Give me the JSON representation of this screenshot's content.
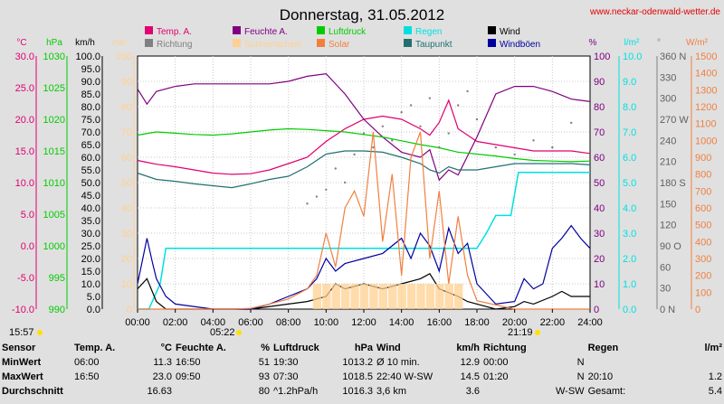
{
  "header": {
    "title": "Donnerstag, 31.05.2012",
    "site_link": "www.neckar-odenwald-wetter.de"
  },
  "colors": {
    "temp": "#e0006f",
    "humidity": "#800080",
    "pressure": "#00cc00",
    "rain": "#00e0e0",
    "wind": "#000000",
    "gust": "#0000a0",
    "direction": "#808080",
    "sunshine": "#ffd090",
    "solar": "#f08040",
    "dewpoint": "#207070"
  },
  "legend": [
    {
      "label": "Temp. A.",
      "key": "temp"
    },
    {
      "label": "Feuchte A.",
      "key": "humidity"
    },
    {
      "label": "Luftdruck",
      "key": "pressure"
    },
    {
      "label": "Regen",
      "key": "rain"
    },
    {
      "label": "Wind",
      "key": "wind"
    },
    {
      "label": "Richtung",
      "key": "direction"
    },
    {
      "label": "Sonnenschein",
      "key": "sunshine"
    },
    {
      "label": "Solar",
      "key": "solar"
    },
    {
      "label": "Taupunkt",
      "key": "dewpoint"
    },
    {
      "label": "Windböen",
      "key": "gust"
    }
  ],
  "axis_units": {
    "temp": "°C",
    "pressure": "hPa",
    "wind": "km/h",
    "sunshine": "min",
    "humidity": "%",
    "rain": "l/m²",
    "direction": "°",
    "solar": "W/m²"
  },
  "sun_times": {
    "sunrise": "05:22",
    "sunset": "21:19",
    "moon": "15:57"
  },
  "chart_data": {
    "type": "line",
    "x_ticks": [
      "00:00",
      "02:00",
      "04:00",
      "06:00",
      "08:00",
      "10:00",
      "12:00",
      "14:00",
      "16:00",
      "18:00",
      "20:00",
      "22:00",
      "24:00"
    ],
    "axes": {
      "temp": {
        "min": -10,
        "max": 30,
        "ticks": [
          "30.0",
          "25.0",
          "20.0",
          "15.0",
          "10.0",
          "5.0",
          "0.0",
          "-5.0",
          "-10.0"
        ]
      },
      "pressure": {
        "min": 990,
        "max": 1030,
        "ticks": [
          "1030",
          "1025",
          "1020",
          "1015",
          "1010",
          "1005",
          "1000",
          "995",
          "990"
        ]
      },
      "wind": {
        "min": 0,
        "max": 100,
        "ticks": [
          "100.0",
          "95.0",
          "90.0",
          "85.0",
          "80.0",
          "75.0",
          "70.0",
          "65.0",
          "60.0",
          "55.0",
          "50.0",
          "45.0",
          "40.0",
          "35.0",
          "30.0",
          "25.0",
          "20.0",
          "15.0",
          "10.0",
          "5.0",
          "0.0"
        ]
      },
      "sunshine": {
        "min": 0,
        "max": 100,
        "ticks": [
          "100",
          "90",
          "80",
          "70",
          "60",
          "50",
          "40",
          "30",
          "20",
          "10",
          "0"
        ]
      },
      "humidity": {
        "min": 0,
        "max": 100,
        "ticks": [
          "100",
          "90",
          "80",
          "70",
          "60",
          "50",
          "40",
          "30",
          "20",
          "10",
          "0"
        ]
      },
      "rain": {
        "min": 0,
        "max": 10,
        "ticks": [
          "10.0",
          "9.0",
          "8.0",
          "7.0",
          "6.0",
          "5.0",
          "4.0",
          "3.0",
          "2.0",
          "1.0",
          "0.0"
        ]
      },
      "direction": {
        "min": 0,
        "max": 360,
        "ticks": [
          "360 N",
          "330",
          "300",
          "270 W",
          "240",
          "210",
          "180 S",
          "150",
          "120",
          "90 O",
          "60",
          "30",
          "0 N"
        ]
      },
      "solar": {
        "min": 0,
        "max": 1500,
        "ticks": [
          "1500",
          "1400",
          "1300",
          "1200",
          "1100",
          "1000",
          "900",
          "800",
          "700",
          "600",
          "500",
          "400",
          "300",
          "200",
          "100",
          "0"
        ]
      }
    },
    "series": [
      {
        "name": "Temp. A.",
        "key": "temp",
        "axis": "temp",
        "x": [
          0,
          0.5,
          1,
          2,
          3,
          4,
          5,
          6,
          7,
          8,
          9,
          10,
          11,
          12,
          13,
          14,
          15,
          15.5,
          16,
          16.5,
          17,
          18,
          19,
          20,
          21,
          22,
          23,
          24
        ],
        "y": [
          13.5,
          13.2,
          12.9,
          12.5,
          12.0,
          11.5,
          11.3,
          11.4,
          12.0,
          13.0,
          14.0,
          16.5,
          18.5,
          20.0,
          20.5,
          20.0,
          18.5,
          17.5,
          19.5,
          23.0,
          18.5,
          16.5,
          16.0,
          15.5,
          15.0,
          15.0,
          15.0,
          14.6
        ]
      },
      {
        "name": "Feuchte A.",
        "key": "humidity",
        "axis": "humidity",
        "x": [
          0,
          0.5,
          1,
          2,
          3,
          4,
          5,
          6,
          7,
          8,
          9,
          10,
          11,
          12,
          13,
          14,
          15,
          15.5,
          16,
          16.5,
          17,
          18,
          19,
          20,
          21,
          22,
          23,
          24
        ],
        "y": [
          87,
          81,
          86,
          88,
          89,
          89,
          89,
          89,
          89,
          90,
          92,
          93,
          85,
          75,
          68,
          62,
          60,
          63,
          51,
          55,
          53,
          68,
          85,
          88,
          88,
          86,
          83,
          82
        ]
      },
      {
        "name": "Luftdruck",
        "key": "pressure",
        "axis": "pressure",
        "x": [
          0,
          1,
          2,
          3,
          4,
          5,
          6,
          7,
          8,
          9,
          10,
          11,
          12,
          13,
          14,
          15,
          16,
          17,
          18,
          19,
          20,
          21,
          22,
          23,
          24
        ],
        "y": [
          1017.5,
          1018.0,
          1017.8,
          1017.6,
          1017.5,
          1017.7,
          1018.0,
          1018.3,
          1018.5,
          1018.4,
          1018.2,
          1018.0,
          1017.6,
          1017.2,
          1016.6,
          1016.0,
          1015.5,
          1014.8,
          1014.5,
          1014.2,
          1013.8,
          1013.5,
          1013.4,
          1013.3,
          1013.4
        ]
      },
      {
        "name": "Regen",
        "key": "rain",
        "axis": "rain",
        "x": [
          0,
          0.6,
          1.2,
          1.5,
          4,
          8,
          12,
          16,
          17.5,
          18,
          18.5,
          19,
          19.8,
          20.2,
          21,
          22,
          24
        ],
        "y": [
          0,
          0,
          1.0,
          2.4,
          2.4,
          2.4,
          2.4,
          2.4,
          2.4,
          2.4,
          3.0,
          3.7,
          3.7,
          5.4,
          5.4,
          5.4,
          5.4
        ]
      },
      {
        "name": "Taupunkt",
        "key": "dewpoint",
        "axis": "temp",
        "x": [
          0,
          1,
          2,
          3,
          4,
          5,
          6,
          7,
          8,
          9,
          10,
          11,
          12,
          13,
          14,
          15,
          15.5,
          16,
          16.5,
          17,
          18,
          19,
          20,
          21,
          22,
          23,
          24
        ],
        "y": [
          11.5,
          10.5,
          10.2,
          9.8,
          9.5,
          9.2,
          9.8,
          10.5,
          11.0,
          12.5,
          14.5,
          15.0,
          15.0,
          14.8,
          14.0,
          13.0,
          12.0,
          11.5,
          12.5,
          12.0,
          12.0,
          12.5,
          13.0,
          13.0,
          13.0,
          13.0,
          12.8
        ]
      },
      {
        "name": "Wind",
        "key": "wind",
        "axis": "wind",
        "x": [
          0,
          0.5,
          1,
          1.5,
          2,
          4,
          6,
          8,
          9,
          10,
          10.5,
          11,
          12,
          13,
          14,
          15,
          15.5,
          16,
          17,
          17.5,
          18,
          19,
          20,
          20.5,
          21,
          22,
          22.5,
          23,
          24
        ],
        "y": [
          8,
          12,
          3,
          0,
          0,
          0,
          0,
          2,
          3,
          5,
          10,
          8,
          10,
          8,
          10,
          12,
          14,
          8,
          5,
          3,
          2,
          0,
          1,
          3,
          2,
          5,
          7,
          5,
          5
        ]
      },
      {
        "name": "Windböen",
        "key": "gust",
        "axis": "wind",
        "x": [
          0,
          0.5,
          0.8,
          1,
          1.5,
          2,
          4,
          6,
          7,
          8,
          9,
          9.5,
          10,
          10.5,
          11,
          12,
          13,
          14,
          14.5,
          15,
          15.5,
          16,
          16.5,
          17,
          17.5,
          18,
          19,
          20,
          20.5,
          21,
          21.5,
          22,
          22.5,
          23,
          23.5,
          24
        ],
        "y": [
          10,
          28,
          18,
          12,
          5,
          2,
          0,
          0,
          2,
          5,
          8,
          12,
          20,
          15,
          18,
          20,
          22,
          28,
          20,
          30,
          25,
          15,
          32,
          22,
          26,
          10,
          2,
          3,
          12,
          8,
          10,
          24,
          28,
          33,
          28,
          24
        ]
      },
      {
        "name": "Solar",
        "key": "solar",
        "axis": "solar",
        "x": [
          0,
          5,
          6,
          7,
          8,
          9,
          9.5,
          10,
          10.5,
          11,
          11.5,
          12,
          12.5,
          13,
          13.5,
          14,
          14.5,
          15,
          15.5,
          16,
          16.5,
          17,
          17.5,
          18,
          20,
          24
        ],
        "y": [
          0,
          0,
          5,
          30,
          60,
          120,
          200,
          450,
          250,
          600,
          700,
          550,
          1050,
          400,
          800,
          200,
          900,
          1050,
          300,
          700,
          150,
          550,
          200,
          50,
          0,
          0
        ]
      },
      {
        "name": "Sonnenschein",
        "key": "sunshine",
        "axis": "sunshine",
        "x": [
          9.5,
          10,
          10.5,
          11,
          11.5,
          12,
          12.5,
          13,
          13.5,
          14,
          14.5,
          15,
          15.5,
          16,
          16.5,
          17
        ],
        "y": [
          10,
          10,
          10,
          10,
          10,
          10,
          10,
          10,
          10,
          10,
          10,
          10,
          10,
          10,
          10,
          10
        ]
      },
      {
        "name": "Richtung",
        "key": "direction",
        "axis": "direction",
        "x": [
          9,
          9.5,
          10,
          10.5,
          11,
          11.5,
          12,
          12.5,
          13,
          13.5,
          14,
          14.5,
          15,
          15.5,
          16,
          16.5,
          17,
          17.5,
          18,
          19,
          20,
          21,
          22,
          23
        ],
        "y": [
          150,
          160,
          170,
          200,
          180,
          220,
          250,
          230,
          260,
          240,
          280,
          290,
          260,
          300,
          230,
          250,
          290,
          310,
          270,
          230,
          220,
          240,
          230,
          265
        ]
      }
    ]
  },
  "summary": {
    "headers": {
      "sensor": "Sensor",
      "temp": "Temp. A.",
      "temp_unit": "°C",
      "hum": "Feuchte A.",
      "hum_unit": "%",
      "press": "Luftdruck",
      "press_unit": "hPa",
      "wind": "Wind",
      "wind_unit": "km/h",
      "dir": "Richtung",
      "rain": "Regen",
      "rain_unit": "l/m²"
    },
    "rows": [
      {
        "label": "MinWert",
        "temp_time": "06:00",
        "temp_val": "11.3",
        "hum_time": "16:50",
        "hum_val": "51",
        "press_time": "19:30",
        "press_val": "1013.2",
        "wind_label": "Ø 10 min.",
        "wind_val": "12.9",
        "dir_time": "00:00",
        "dir_val": "N",
        "rain_time": "",
        "rain_val": ""
      },
      {
        "label": "MaxWert",
        "temp_time": "16:50",
        "temp_val": "23.0",
        "hum_time": "09:50",
        "hum_val": "93",
        "press_time": "07:30",
        "press_val": "1018.5",
        "wind_label": "22:40    W-SW",
        "wind_val": "14.5",
        "dir_time": "01:20",
        "dir_val": "N",
        "rain_time": "20:10",
        "rain_val": "1.2"
      },
      {
        "label": "Durchschnitt",
        "temp_time": "",
        "temp_val": "16.63",
        "hum_time": "",
        "hum_val": "80",
        "press_time": "^1.2hPa/h",
        "press_val": "1016.3",
        "wind_label": "3,6 km",
        "wind_val": "3.6",
        "dir_time": "",
        "dir_val": "W-SW",
        "rain_time": "Gesamt:",
        "rain_val": "5.4"
      }
    ]
  }
}
